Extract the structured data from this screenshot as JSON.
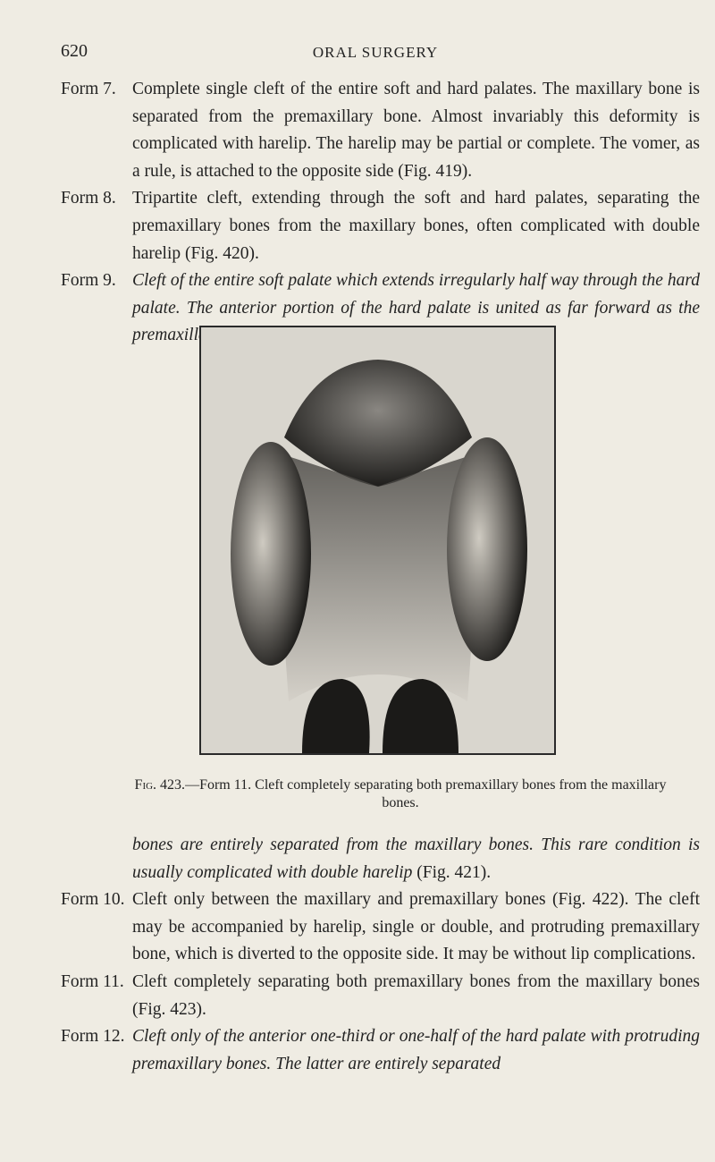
{
  "header": {
    "page_number": "620",
    "running_head": "ORAL SURGERY"
  },
  "entries_before": [
    {
      "label": "Form 7.",
      "segments": [
        {
          "text": "Complete single cleft of the entire soft and hard palates. The maxillary bone is separated from the premaxillary bone. Almost invariably this deformity is complicated with harelip. The harelip may be partial or complete. The vomer, as a rule, is attached to the opposite side (Fig. 419).",
          "italic": false
        }
      ]
    },
    {
      "label": "Form 8.",
      "segments": [
        {
          "text": "Tripartite cleft, extending through the soft and hard palates, separating the premaxillary bones from the maxillary bones, often complicated with double harelip (Fig. 420).",
          "italic": false
        }
      ]
    },
    {
      "label": "Form 9.",
      "segments": [
        {
          "text": "Cleft of the entire soft palate which extends irregularly half way through the hard palate. The anterior portion of the hard palate is united as far forward as the premaxillary bones. The premaxillary",
          "italic": true
        }
      ]
    }
  ],
  "figure": {
    "caption_label": "Fig. 423.",
    "caption_text": "—Form 11. Cleft completely separating both premaxillary bones from the maxillary bones."
  },
  "continuation": {
    "segments": [
      {
        "text": "bones are entirely separated from the maxillary bones. This rare condition is usually complicated with double harelip",
        "italic": true
      },
      {
        "text": " (Fig. 421).",
        "italic": false
      }
    ]
  },
  "entries_after": [
    {
      "label": "Form 10.",
      "segments": [
        {
          "text": "Cleft only between the maxillary and premaxillary bones (Fig. 422). The cleft may be accompanied by harelip, single or double, and protruding premaxillary bone, which is diverted to the opposite side. It may be without lip complications.",
          "italic": false
        }
      ]
    },
    {
      "label": "Form 11.",
      "segments": [
        {
          "text": "Cleft completely separating both premaxillary bones from the maxillary bones (Fig. 423).",
          "italic": false
        }
      ]
    },
    {
      "label": "Form 12.",
      "segments": [
        {
          "text": "Cleft only of the anterior one-third or one-half of the hard palate with protruding premaxillary bones. The latter are entirely separated",
          "italic": true
        }
      ]
    }
  ]
}
